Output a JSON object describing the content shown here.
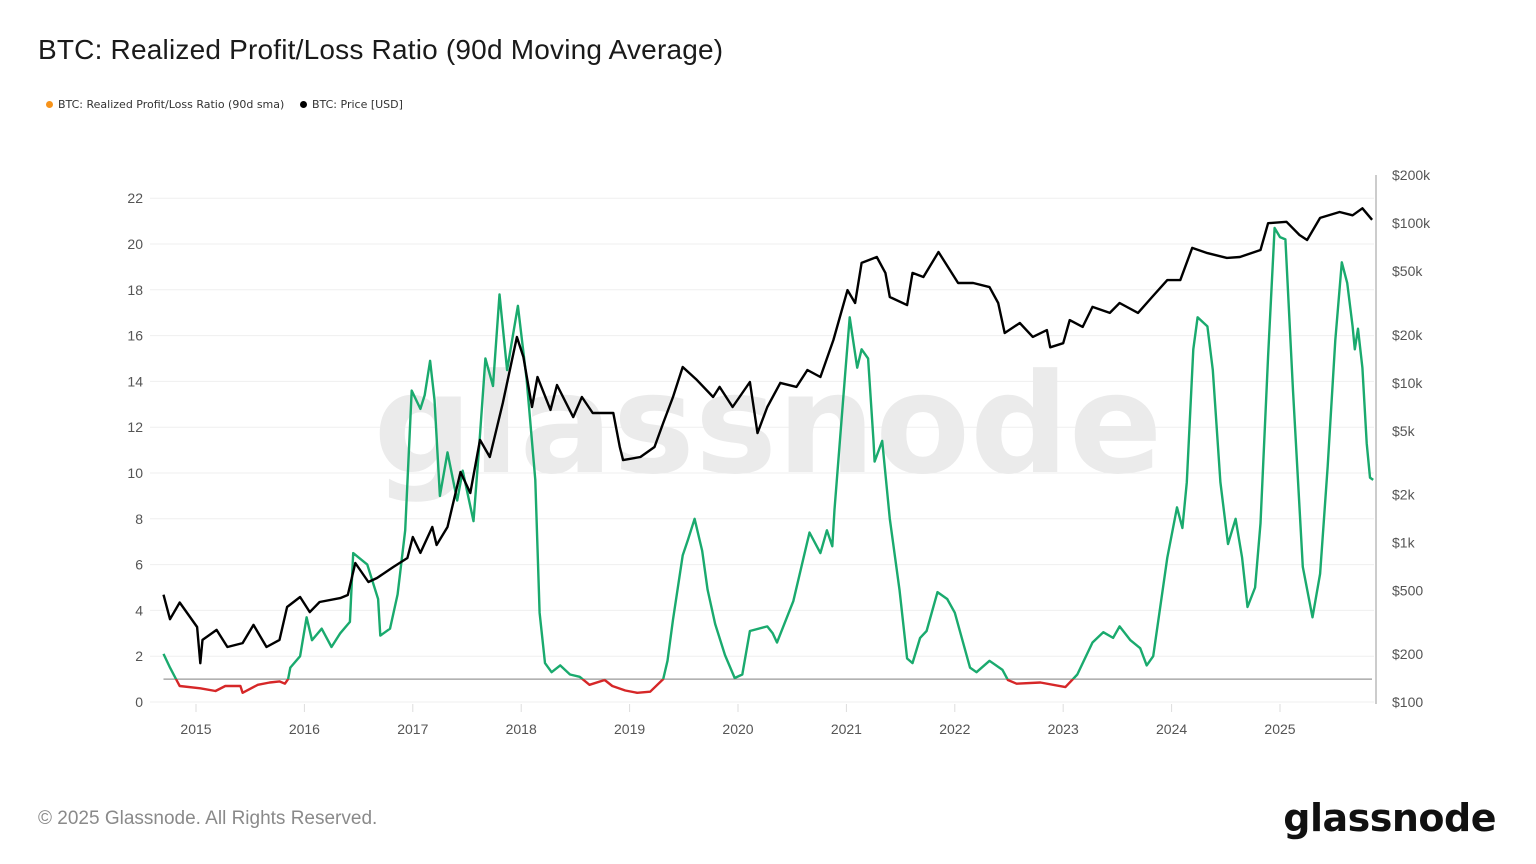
{
  "title": "BTC: Realized Profit/Loss Ratio (90d Moving Average)",
  "legend": [
    {
      "label": "BTC: Realized Profit/Loss Ratio (90d sma)",
      "color": "#f7931a"
    },
    {
      "label": "BTC: Price [USD]",
      "color": "#000000"
    }
  ],
  "watermark": "glassnode",
  "footer": "© 2025 Glassnode. All Rights Reserved.",
  "logo": "glassnode",
  "chart_data": {
    "type": "line",
    "title": "BTC: Realized Profit/Loss Ratio (90d Moving Average)",
    "x_ticks": [
      "2015",
      "2016",
      "2017",
      "2018",
      "2019",
      "2020",
      "2021",
      "2022",
      "2023",
      "2024",
      "2025"
    ],
    "xlim": [
      2014.7,
      2025.87
    ],
    "y_left": {
      "ticks": [
        "0",
        "2",
        "4",
        "6",
        "8",
        "10",
        "12",
        "14",
        "16",
        "18",
        "20",
        "22"
      ],
      "ylim": [
        0,
        22
      ],
      "scale": "linear"
    },
    "y_right": {
      "ticks": [
        {
          "v": 100,
          "label": "$100"
        },
        {
          "v": 200,
          "label": "$200"
        },
        {
          "v": 500,
          "label": "$500"
        },
        {
          "v": 1000,
          "label": "$1k"
        },
        {
          "v": 2000,
          "label": "$2k"
        },
        {
          "v": 5000,
          "label": "$5k"
        },
        {
          "v": 10000,
          "label": "$10k"
        },
        {
          "v": 20000,
          "label": "$20k"
        },
        {
          "v": 50000,
          "label": "$50k"
        },
        {
          "v": 100000,
          "label": "$100k"
        },
        {
          "v": 200000,
          "label": "$200k"
        }
      ],
      "ylim": [
        100,
        200000
      ],
      "scale": "log"
    },
    "threshold": 1,
    "grid": true,
    "legend_position": "top-left",
    "colors": {
      "ratio_above_1": "#1aaa6e",
      "ratio_below_1": "#d62728",
      "price": "#000000",
      "threshold": "#999999"
    },
    "series": [
      {
        "name": "BTC: Realized Profit/Loss Ratio (90d sma)",
        "axis": "left",
        "points": [
          [
            2014.7,
            2.1
          ],
          [
            2014.76,
            1.5
          ],
          [
            2014.82,
            0.96
          ],
          [
            2014.85,
            0.7
          ],
          [
            2015.04,
            0.6
          ],
          [
            2015.18,
            0.48
          ],
          [
            2015.27,
            0.7
          ],
          [
            2015.41,
            0.7
          ],
          [
            2015.43,
            0.4
          ],
          [
            2015.57,
            0.75
          ],
          [
            2015.68,
            0.85
          ],
          [
            2015.77,
            0.9
          ],
          [
            2015.82,
            0.8
          ],
          [
            2015.85,
            1.0
          ],
          [
            2015.87,
            1.5
          ],
          [
            2015.96,
            2.0
          ],
          [
            2016.02,
            3.7
          ],
          [
            2016.07,
            2.7
          ],
          [
            2016.16,
            3.2
          ],
          [
            2016.25,
            2.4
          ],
          [
            2016.33,
            3.0
          ],
          [
            2016.42,
            3.5
          ],
          [
            2016.45,
            6.5
          ],
          [
            2016.58,
            6.0
          ],
          [
            2016.68,
            4.5
          ],
          [
            2016.7,
            2.9
          ],
          [
            2016.79,
            3.2
          ],
          [
            2016.86,
            4.7
          ],
          [
            2016.93,
            7.5
          ],
          [
            2016.99,
            13.6
          ],
          [
            2017.07,
            12.8
          ],
          [
            2017.11,
            13.4
          ],
          [
            2017.16,
            14.9
          ],
          [
            2017.2,
            13.2
          ],
          [
            2017.25,
            9.0
          ],
          [
            2017.32,
            10.9
          ],
          [
            2017.41,
            8.8
          ],
          [
            2017.46,
            10.1
          ],
          [
            2017.56,
            7.9
          ],
          [
            2017.61,
            11.0
          ],
          [
            2017.67,
            15.0
          ],
          [
            2017.74,
            13.8
          ],
          [
            2017.8,
            17.8
          ],
          [
            2017.87,
            14.5
          ],
          [
            2017.97,
            17.3
          ],
          [
            2018.05,
            14.1
          ],
          [
            2018.13,
            9.7
          ],
          [
            2018.17,
            3.9
          ],
          [
            2018.22,
            1.7
          ],
          [
            2018.28,
            1.3
          ],
          [
            2018.36,
            1.6
          ],
          [
            2018.45,
            1.2
          ],
          [
            2018.54,
            1.1
          ],
          [
            2018.63,
            0.75
          ],
          [
            2018.77,
            0.96
          ],
          [
            2018.84,
            0.7
          ],
          [
            2018.96,
            0.5
          ],
          [
            2019.07,
            0.4
          ],
          [
            2019.19,
            0.45
          ],
          [
            2019.31,
            1.0
          ],
          [
            2019.35,
            1.8
          ],
          [
            2019.4,
            3.6
          ],
          [
            2019.49,
            6.4
          ],
          [
            2019.54,
            7.1
          ],
          [
            2019.6,
            8.0
          ],
          [
            2019.67,
            6.6
          ],
          [
            2019.72,
            4.9
          ],
          [
            2019.79,
            3.4
          ],
          [
            2019.88,
            2.05
          ],
          [
            2019.97,
            1.05
          ],
          [
            2020.04,
            1.2
          ],
          [
            2020.11,
            3.1
          ],
          [
            2020.27,
            3.3
          ],
          [
            2020.32,
            3.0
          ],
          [
            2020.36,
            2.6
          ],
          [
            2020.51,
            4.4
          ],
          [
            2020.66,
            7.4
          ],
          [
            2020.76,
            6.5
          ],
          [
            2020.82,
            7.5
          ],
          [
            2020.87,
            6.8
          ],
          [
            2020.89,
            8.4
          ],
          [
            2020.99,
            14.4
          ],
          [
            2021.03,
            16.8
          ],
          [
            2021.1,
            14.6
          ],
          [
            2021.14,
            15.4
          ],
          [
            2021.2,
            15.0
          ],
          [
            2021.25,
            11.4
          ],
          [
            2021.26,
            10.5
          ],
          [
            2021.33,
            11.4
          ],
          [
            2021.4,
            8.0
          ],
          [
            2021.49,
            4.9
          ],
          [
            2021.56,
            1.9
          ],
          [
            2021.61,
            1.7
          ],
          [
            2021.68,
            2.8
          ],
          [
            2021.74,
            3.1
          ],
          [
            2021.84,
            4.8
          ],
          [
            2021.93,
            4.5
          ],
          [
            2022.0,
            3.9
          ],
          [
            2022.14,
            1.5
          ],
          [
            2022.2,
            1.3
          ],
          [
            2022.32,
            1.8
          ],
          [
            2022.44,
            1.4
          ],
          [
            2022.49,
            0.96
          ],
          [
            2022.57,
            0.8
          ],
          [
            2022.79,
            0.85
          ],
          [
            2023.02,
            0.65
          ],
          [
            2023.13,
            1.2
          ],
          [
            2023.27,
            2.6
          ],
          [
            2023.37,
            3.05
          ],
          [
            2023.46,
            2.8
          ],
          [
            2023.52,
            3.3
          ],
          [
            2023.62,
            2.7
          ],
          [
            2023.71,
            2.35
          ],
          [
            2023.77,
            1.6
          ],
          [
            2023.83,
            2.0
          ],
          [
            2023.96,
            6.3
          ],
          [
            2024.05,
            8.5
          ],
          [
            2024.1,
            7.6
          ],
          [
            2024.14,
            9.6
          ],
          [
            2024.2,
            15.4
          ],
          [
            2024.24,
            16.8
          ],
          [
            2024.33,
            16.4
          ],
          [
            2024.38,
            14.5
          ],
          [
            2024.45,
            9.6
          ],
          [
            2024.52,
            6.9
          ],
          [
            2024.59,
            8.0
          ],
          [
            2024.65,
            6.3
          ],
          [
            2024.7,
            4.15
          ],
          [
            2024.77,
            5.0
          ],
          [
            2024.82,
            7.8
          ],
          [
            2024.89,
            15.1
          ],
          [
            2024.95,
            20.7
          ],
          [
            2025.0,
            20.3
          ],
          [
            2025.05,
            20.2
          ],
          [
            2025.12,
            13.6
          ],
          [
            2025.21,
            5.9
          ],
          [
            2025.3,
            3.7
          ],
          [
            2025.37,
            5.6
          ],
          [
            2025.44,
            10.3
          ],
          [
            2025.51,
            15.8
          ],
          [
            2025.57,
            19.2
          ],
          [
            2025.62,
            18.3
          ],
          [
            2025.67,
            16.4
          ],
          [
            2025.69,
            15.4
          ],
          [
            2025.72,
            16.3
          ],
          [
            2025.76,
            14.6
          ],
          [
            2025.8,
            11.3
          ],
          [
            2025.83,
            9.8
          ],
          [
            2025.86,
            9.7
          ]
        ]
      },
      {
        "name": "BTC: Price [USD]",
        "axis": "right",
        "points": [
          [
            2014.7,
            470
          ],
          [
            2014.76,
            330
          ],
          [
            2014.85,
            420
          ],
          [
            2015.01,
            295
          ],
          [
            2015.04,
            175
          ],
          [
            2015.06,
            245
          ],
          [
            2015.19,
            283
          ],
          [
            2015.29,
            221
          ],
          [
            2015.43,
            234
          ],
          [
            2015.53,
            304
          ],
          [
            2015.65,
            221
          ],
          [
            2015.77,
            245
          ],
          [
            2015.84,
            394
          ],
          [
            2015.96,
            455
          ],
          [
            2016.05,
            366
          ],
          [
            2016.14,
            423
          ],
          [
            2016.33,
            448
          ],
          [
            2016.4,
            468
          ],
          [
            2016.47,
            743
          ],
          [
            2016.59,
            565
          ],
          [
            2016.67,
            598
          ],
          [
            2016.82,
            701
          ],
          [
            2016.95,
            798
          ],
          [
            2017.0,
            1081
          ],
          [
            2017.07,
            859
          ],
          [
            2017.18,
            1248
          ],
          [
            2017.22,
            963
          ],
          [
            2017.32,
            1248
          ],
          [
            2017.44,
            2761
          ],
          [
            2017.53,
            2040
          ],
          [
            2017.62,
            4385
          ],
          [
            2017.71,
            3428
          ],
          [
            2017.83,
            7467
          ],
          [
            2017.96,
            19360
          ],
          [
            2018.02,
            14510
          ],
          [
            2018.1,
            7050
          ],
          [
            2018.15,
            10870
          ],
          [
            2018.27,
            6760
          ],
          [
            2018.33,
            9690
          ],
          [
            2018.48,
            6100
          ],
          [
            2018.56,
            8150
          ],
          [
            2018.66,
            6470
          ],
          [
            2018.85,
            6470
          ],
          [
            2018.91,
            3960
          ],
          [
            2018.94,
            3280
          ],
          [
            2019.1,
            3428
          ],
          [
            2019.23,
            3960
          ],
          [
            2019.31,
            5600
          ],
          [
            2019.4,
            8150
          ],
          [
            2019.49,
            12560
          ],
          [
            2019.62,
            10420
          ],
          [
            2019.77,
            8150
          ],
          [
            2019.83,
            9420
          ],
          [
            2019.95,
            7050
          ],
          [
            2020.11,
            10120
          ],
          [
            2020.18,
            4840
          ],
          [
            2020.27,
            7050
          ],
          [
            2020.39,
            9980
          ],
          [
            2020.54,
            9420
          ],
          [
            2020.64,
            12030
          ],
          [
            2020.76,
            10870
          ],
          [
            2020.88,
            18540
          ],
          [
            2021.01,
            38100
          ],
          [
            2021.08,
            31600
          ],
          [
            2021.14,
            56400
          ],
          [
            2021.28,
            61400
          ],
          [
            2021.36,
            48800
          ],
          [
            2021.4,
            34500
          ],
          [
            2021.56,
            30700
          ],
          [
            2021.61,
            48800
          ],
          [
            2021.71,
            46000
          ],
          [
            2021.85,
            66000
          ],
          [
            2022.03,
            42200
          ],
          [
            2022.17,
            42200
          ],
          [
            2022.32,
            39800
          ],
          [
            2022.4,
            31600
          ],
          [
            2022.46,
            20500
          ],
          [
            2022.6,
            23700
          ],
          [
            2022.72,
            19400
          ],
          [
            2022.85,
            21400
          ],
          [
            2022.88,
            16700
          ],
          [
            2023.0,
            17700
          ],
          [
            2023.06,
            24700
          ],
          [
            2023.18,
            22400
          ],
          [
            2023.27,
            29900
          ],
          [
            2023.43,
            27400
          ],
          [
            2023.52,
            31600
          ],
          [
            2023.69,
            27400
          ],
          [
            2023.82,
            34500
          ],
          [
            2023.96,
            44000
          ],
          [
            2024.08,
            44000
          ],
          [
            2024.19,
            70000
          ],
          [
            2024.33,
            65000
          ],
          [
            2024.51,
            60600
          ],
          [
            2024.63,
            61400
          ],
          [
            2024.82,
            67900
          ],
          [
            2024.89,
            100000
          ],
          [
            2025.06,
            102000
          ],
          [
            2025.18,
            84400
          ],
          [
            2025.25,
            78500
          ],
          [
            2025.37,
            108000
          ],
          [
            2025.55,
            117500
          ],
          [
            2025.67,
            112000
          ],
          [
            2025.76,
            124000
          ],
          [
            2025.85,
            105000
          ]
        ]
      }
    ]
  }
}
